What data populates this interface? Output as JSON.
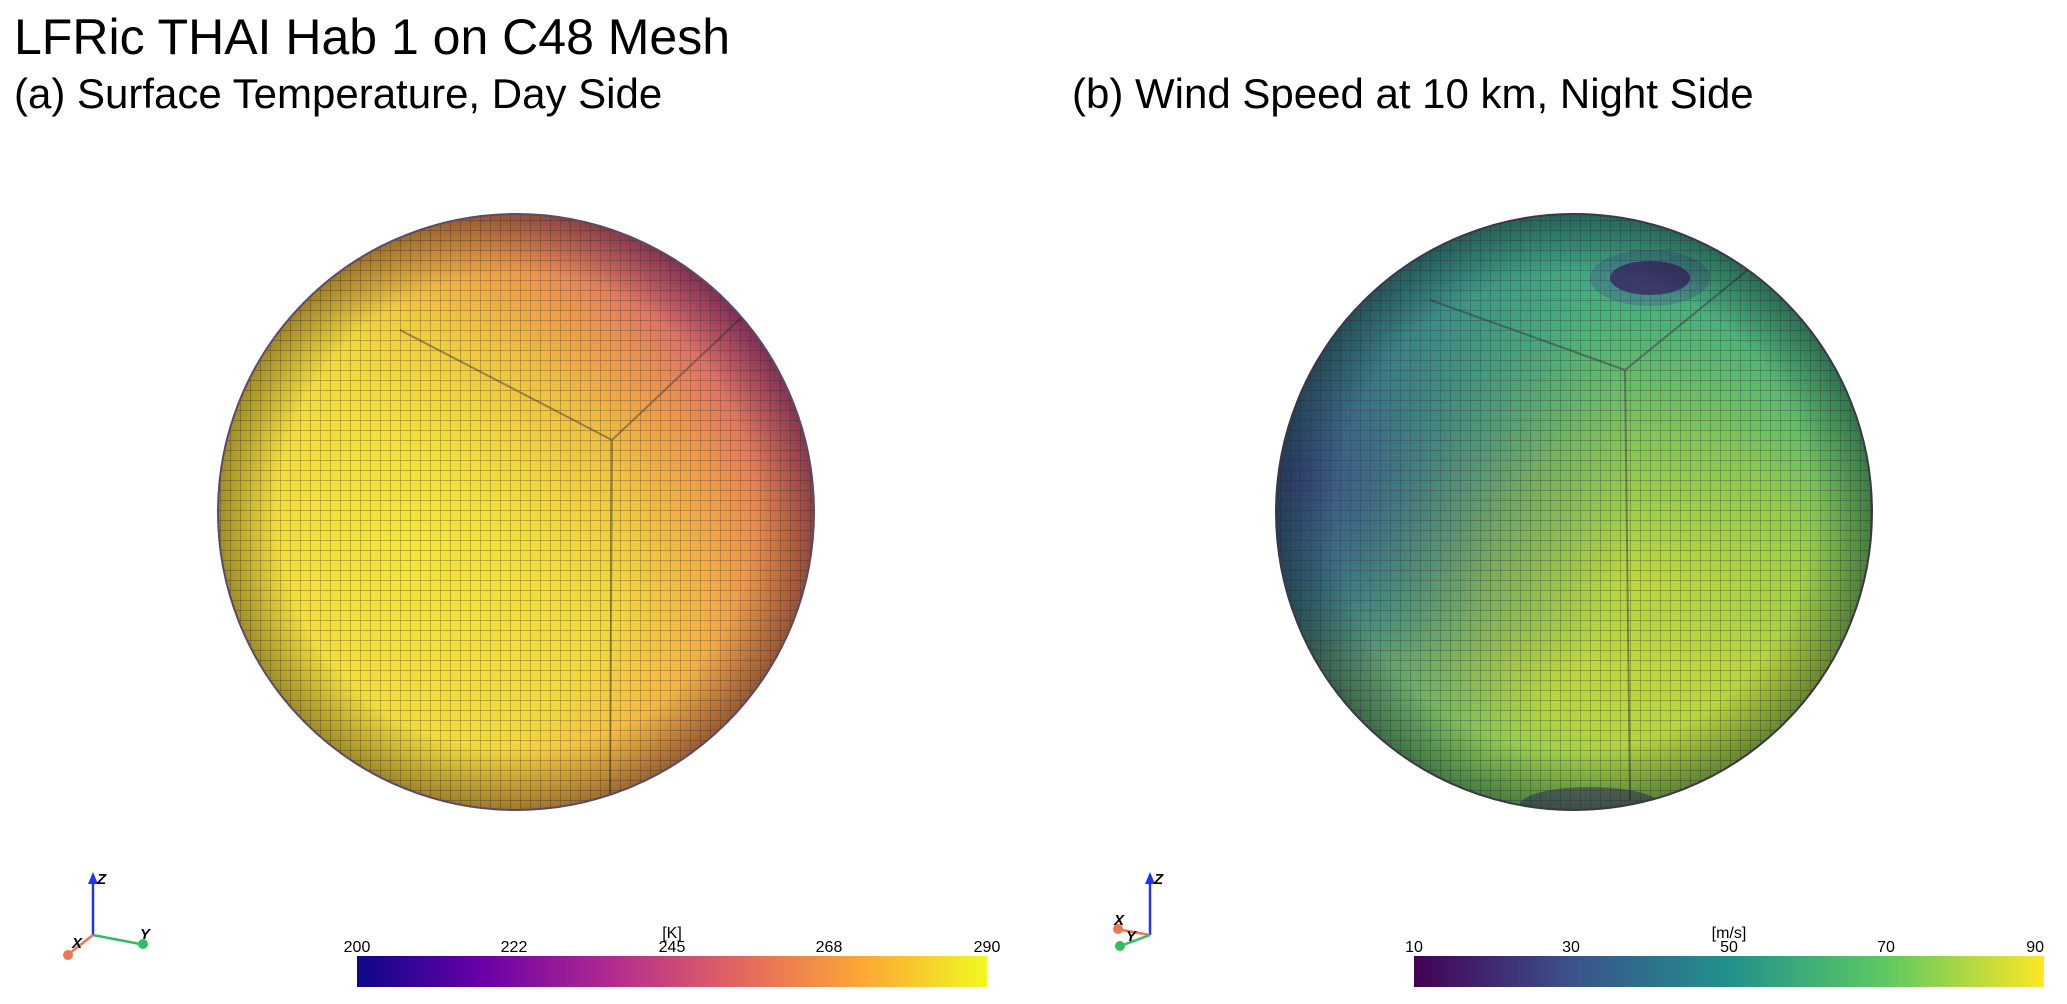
{
  "figure": {
    "title": "LFRic THAI Hab 1 on C48 Mesh",
    "panels": [
      {
        "subtitle": "(a) Surface Temperature, Day Side",
        "colorbar": {
          "unit": "[K]",
          "ticks": [
            "200",
            "222",
            "245",
            "268",
            "290"
          ],
          "colormap": "plasma",
          "colors": [
            "#0d0887",
            "#6a00a8",
            "#b12a90",
            "#e16462",
            "#fca636",
            "#f0f921"
          ]
        },
        "axes": {
          "x": "X",
          "y": "Y",
          "z": "Z"
        }
      },
      {
        "subtitle": "(b) Wind Speed at 10 km, Night Side",
        "colorbar": {
          "unit": "[m/s]",
          "ticks": [
            "10",
            "30",
            "50",
            "70",
            "90"
          ],
          "colormap": "viridis",
          "colors": [
            "#440154",
            "#3b528b",
            "#21918c",
            "#5ec962",
            "#fde725"
          ]
        },
        "axes": {
          "x": "X",
          "y": "Y",
          "z": "Z"
        }
      }
    ]
  }
}
